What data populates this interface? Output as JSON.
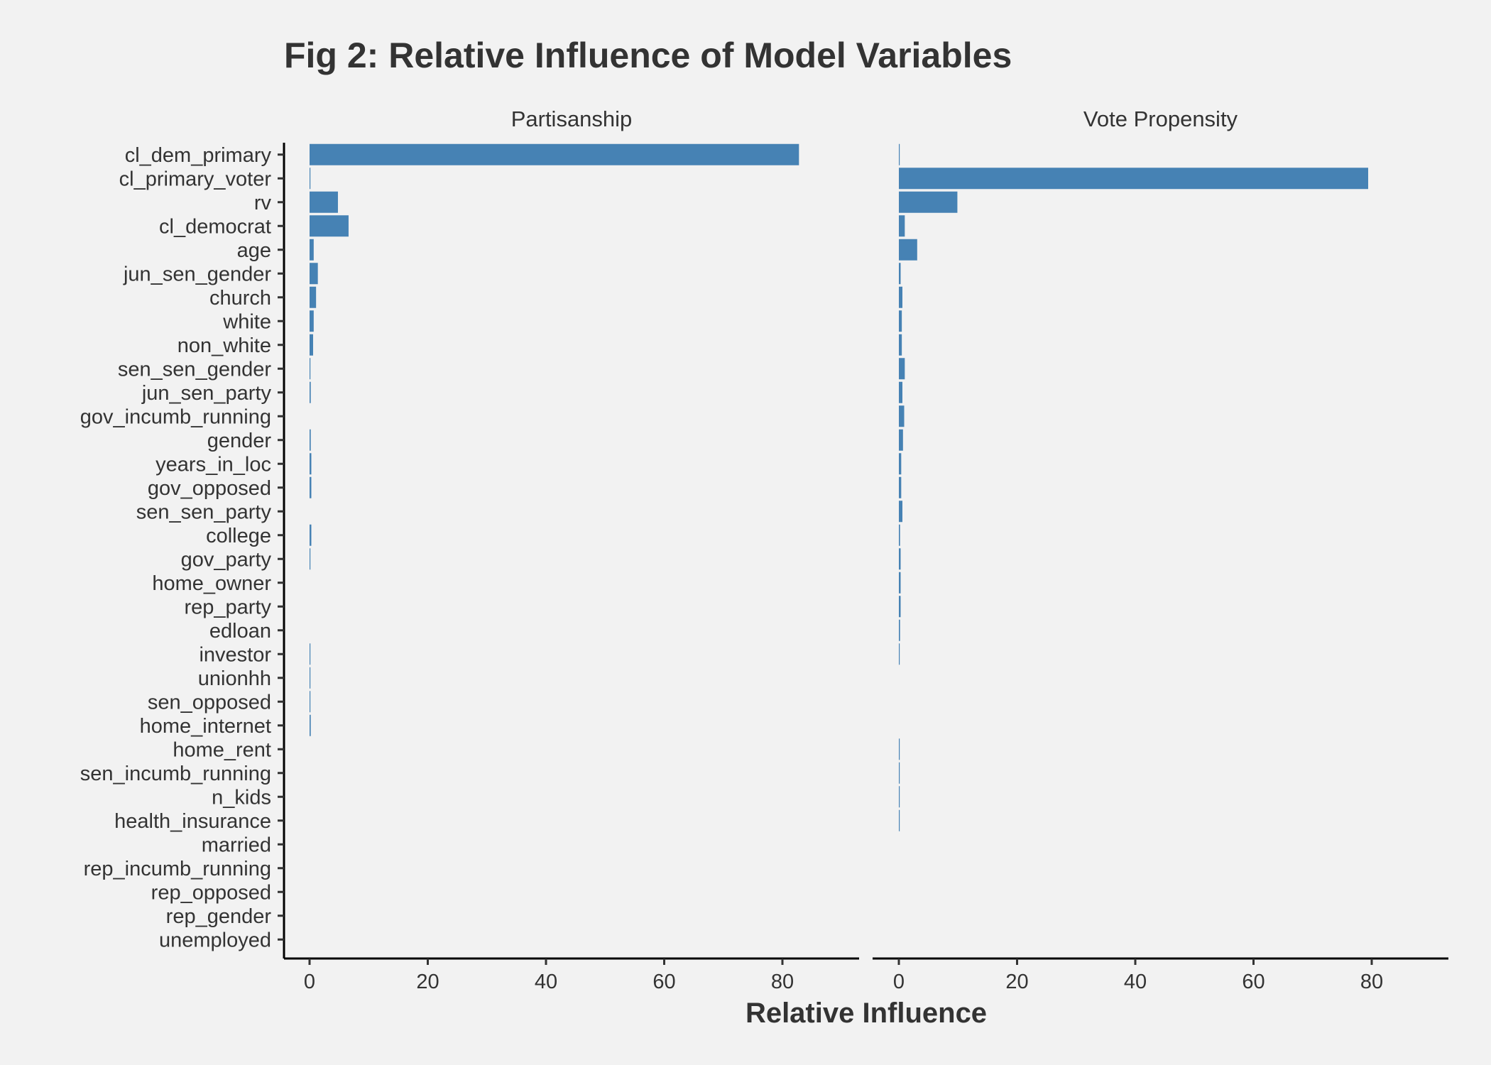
{
  "chart_data": {
    "type": "bar",
    "orientation": "horizontal",
    "title": "Fig 2: Relative Influence of Model Variables",
    "xlabel": "Relative Influence",
    "ylabel": "",
    "xlim": [
      -4,
      88
    ],
    "xticks": [
      0,
      20,
      40,
      60,
      80
    ],
    "bar_color": "#4682b4",
    "background": "#f2f2f2",
    "grid": false,
    "categories": [
      "cl_dem_primary",
      "cl_primary_voter",
      "rv",
      "cl_democrat",
      "age",
      "jun_sen_gender",
      "church",
      "white",
      "non_white",
      "sen_sen_gender",
      "jun_sen_party",
      "gov_incumb_running",
      "gender",
      "years_in_loc",
      "gov_opposed",
      "sen_sen_party",
      "college",
      "gov_party",
      "home_owner",
      "rep_party",
      "edloan",
      "investor",
      "unionhh",
      "sen_opposed",
      "home_internet",
      "home_rent",
      "sen_incumb_running",
      "n_kids",
      "health_insurance",
      "married",
      "rep_incumb_running",
      "rep_opposed",
      "rep_gender",
      "unemployed"
    ],
    "panels": [
      {
        "name": "Partisanship",
        "values": [
          82.8,
          0.1,
          4.8,
          6.6,
          0.7,
          1.4,
          1.1,
          0.7,
          0.6,
          0.1,
          0.2,
          0.0,
          0.2,
          0.3,
          0.3,
          0.0,
          0.3,
          0.1,
          0.0,
          0.0,
          0.0,
          0.1,
          0.1,
          0.1,
          0.2,
          0.0,
          0.0,
          0.0,
          0.0,
          0.0,
          0.0,
          0.0,
          0.0,
          0.0
        ]
      },
      {
        "name": "Vote Propensity",
        "values": [
          0.1,
          79.4,
          9.9,
          1.0,
          3.1,
          0.3,
          0.6,
          0.5,
          0.5,
          1.0,
          0.6,
          0.9,
          0.7,
          0.4,
          0.4,
          0.6,
          0.2,
          0.3,
          0.3,
          0.3,
          0.2,
          0.1,
          0.0,
          0.0,
          0.0,
          0.1,
          0.1,
          0.1,
          0.1,
          0.0,
          0.0,
          0.0,
          0.0,
          0.0
        ]
      }
    ]
  }
}
